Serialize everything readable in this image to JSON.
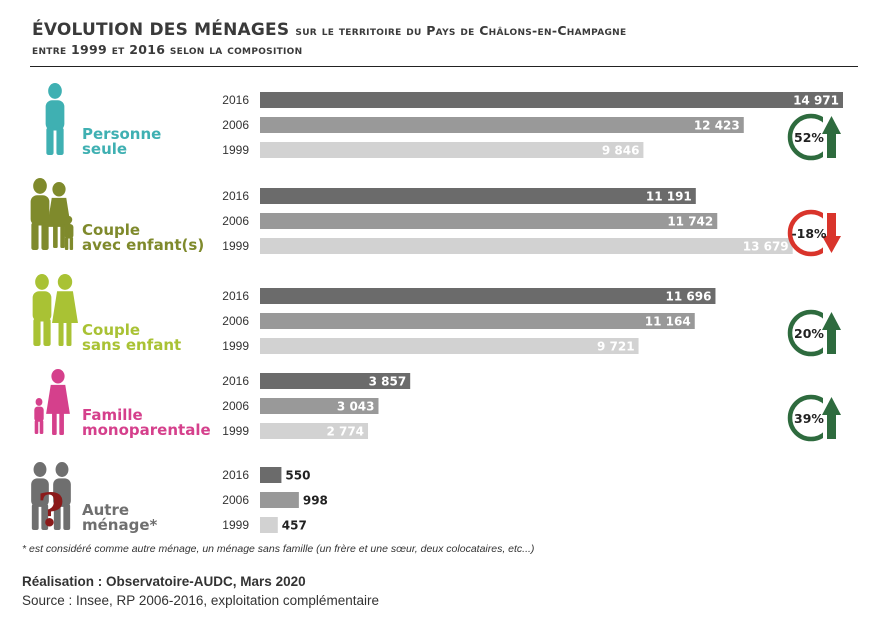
{
  "title": {
    "main": "ÉVOLUTION DES MÉNAGES",
    "rest": "sur le territoire du Pays de Châlons-en-Champagne",
    "line2": "entre 1999 et 2016 selon la composition"
  },
  "colors": {
    "bar_2016": "#6b6b6b",
    "bar_2006": "#999999",
    "bar_1999": "#d2d2d2",
    "increase": "#2e6b3e",
    "decrease": "#d9342b"
  },
  "chart_data": {
    "type": "bar",
    "orientation": "horizontal",
    "years": [
      "2016",
      "2006",
      "1999"
    ],
    "xlim": [
      0,
      14971
    ],
    "groups": [
      {
        "label_lines": [
          "Personne",
          "seule"
        ],
        "label_color": "#3fb0b2",
        "icon": "single-person-icon",
        "values": [
          14971,
          12423,
          9846
        ],
        "value_labels": [
          "14 971",
          "12 423",
          "9 846"
        ],
        "change": "52%",
        "trend": "up"
      },
      {
        "label_lines": [
          "Couple",
          "avec enfant(s)"
        ],
        "label_color": "#7f8a2c",
        "icon": "family-with-children-icon",
        "values": [
          11191,
          11742,
          13679
        ],
        "value_labels": [
          "11 191",
          "11 742",
          "13 679"
        ],
        "change": "-18%",
        "trend": "down"
      },
      {
        "label_lines": [
          "Couple",
          "sans enfant"
        ],
        "label_color": "#a9c234",
        "icon": "couple-icon",
        "values": [
          11696,
          11164,
          9721
        ],
        "value_labels": [
          "11 696",
          "11 164",
          "9 721"
        ],
        "change": "20%",
        "trend": "up"
      },
      {
        "label_lines": [
          "Famille",
          "monoparentale"
        ],
        "label_color": "#d5408c",
        "icon": "single-parent-family-icon",
        "values": [
          3857,
          3043,
          2774
        ],
        "value_labels": [
          "3 857",
          "3 043",
          "2 774"
        ],
        "change": "39%",
        "trend": "up"
      },
      {
        "label_lines": [
          "Autre",
          "ménage*"
        ],
        "label_color": "#6f6f6f",
        "icon": "other-household-question-icon",
        "values": [
          550,
          998,
          457
        ],
        "value_labels": [
          "550",
          "998",
          "457"
        ],
        "change": "",
        "trend": ""
      }
    ]
  },
  "footnote": "* est considéré comme autre ménage, un ménage sans famille (un frère et une sœur, deux colocataires, etc...)",
  "credit": "Réalisation : Observatoire-AUDC, Mars 2020",
  "source": "Source : Insee, RP 2006-2016, exploitation complémentaire"
}
